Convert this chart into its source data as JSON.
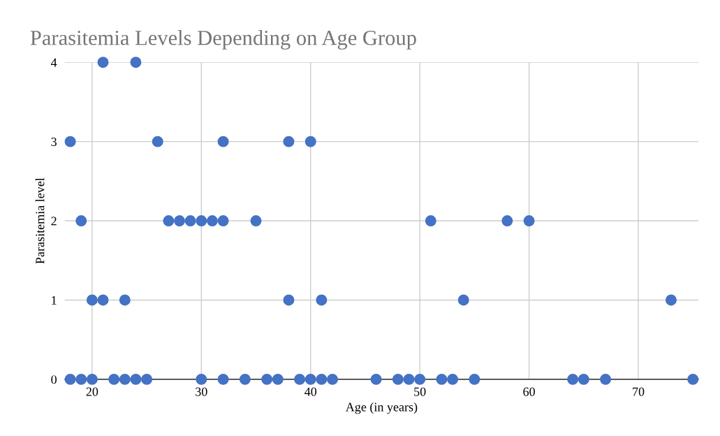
{
  "chart_data": {
    "type": "scatter",
    "title": "Parasitemia Levels Depending on Age Group",
    "xlabel": "Age (in years)",
    "ylabel": "Parasitemia level",
    "x": [
      21,
      24,
      18,
      26,
      32,
      38,
      40,
      19,
      27,
      28,
      29,
      30,
      31,
      32,
      35,
      51,
      58,
      60,
      20,
      21,
      23,
      38,
      41,
      54,
      73,
      18,
      19,
      20,
      22,
      23,
      24,
      25,
      30,
      32,
      34,
      36,
      37,
      39,
      40,
      41,
      42,
      46,
      48,
      49,
      50,
      52,
      53,
      55,
      64,
      65,
      67,
      75
    ],
    "series": [
      {
        "color": "#4472c4",
        "values": [
          4,
          4,
          3,
          3,
          3,
          3,
          3,
          2,
          2,
          2,
          2,
          2,
          2,
          2,
          2,
          2,
          2,
          2,
          1,
          1,
          1,
          1,
          1,
          1,
          1,
          0,
          0,
          0,
          0,
          0,
          0,
          0,
          0,
          0,
          0,
          0,
          0,
          0,
          0,
          0,
          0,
          0,
          0,
          0,
          0,
          0,
          0,
          0,
          0,
          0,
          0,
          0
        ]
      }
    ],
    "xlim": [
      17.5,
      75.5
    ],
    "xticks": [
      20,
      30,
      40,
      50,
      60,
      70
    ],
    "ylim": [
      0,
      4
    ],
    "yticks": [
      0,
      1,
      2,
      3,
      4
    ],
    "grid": true,
    "marker": "circle"
  }
}
